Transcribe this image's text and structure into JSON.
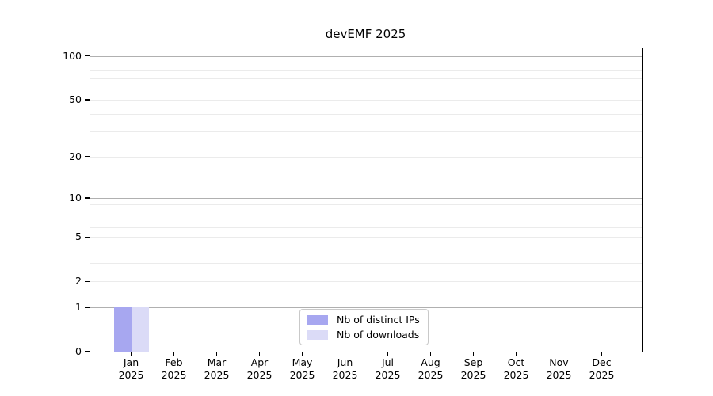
{
  "chart_data": {
    "type": "bar",
    "title": "devEMF 2025",
    "months": [
      "Jan",
      "Feb",
      "Mar",
      "Apr",
      "May",
      "Jun",
      "Jul",
      "Aug",
      "Sep",
      "Oct",
      "Nov",
      "Dec"
    ],
    "year_label": "2025",
    "categories": [
      "Jan 2025",
      "Feb 2025",
      "Mar 2025",
      "Apr 2025",
      "May 2025",
      "Jun 2025",
      "Jul 2025",
      "Aug 2025",
      "Sep 2025",
      "Oct 2025",
      "Nov 2025",
      "Dec 2025"
    ],
    "series": [
      {
        "name": "Nb of distinct IPs",
        "color": "#a7a7f0",
        "values": [
          1,
          0,
          0,
          0,
          0,
          0,
          0,
          0,
          0,
          0,
          0,
          0
        ]
      },
      {
        "name": "Nb of downloads",
        "color": "#dbdbf7",
        "values": [
          1,
          0,
          0,
          0,
          0,
          0,
          0,
          0,
          0,
          0,
          0,
          0
        ]
      }
    ],
    "y_scale": "log1p",
    "y_ticks": [
      0,
      1,
      2,
      5,
      10,
      20,
      50,
      100
    ],
    "y_major_gridlines": [
      1,
      10,
      100
    ],
    "y_minor_gridlines": [
      2,
      3,
      4,
      5,
      6,
      7,
      8,
      9,
      20,
      30,
      40,
      50,
      60,
      70,
      80,
      90
    ],
    "ylim": [
      0,
      113
    ],
    "grid": true,
    "legend_position": "lower center"
  },
  "legend": {
    "items": [
      {
        "label": "Nb of distinct IPs",
        "color": "#a7a7f0"
      },
      {
        "label": "Nb of downloads",
        "color": "#dbdbf7"
      }
    ]
  },
  "colors": {
    "bar_distinct_ips": "#a7a7f0",
    "bar_downloads": "#dbdbf7",
    "grid_major": "#b0b0b0",
    "grid_minor": "#ebebeb",
    "axis": "#000000",
    "text": "#000000",
    "legend_border": "#c9c9c9",
    "background": "#ffffff"
  }
}
